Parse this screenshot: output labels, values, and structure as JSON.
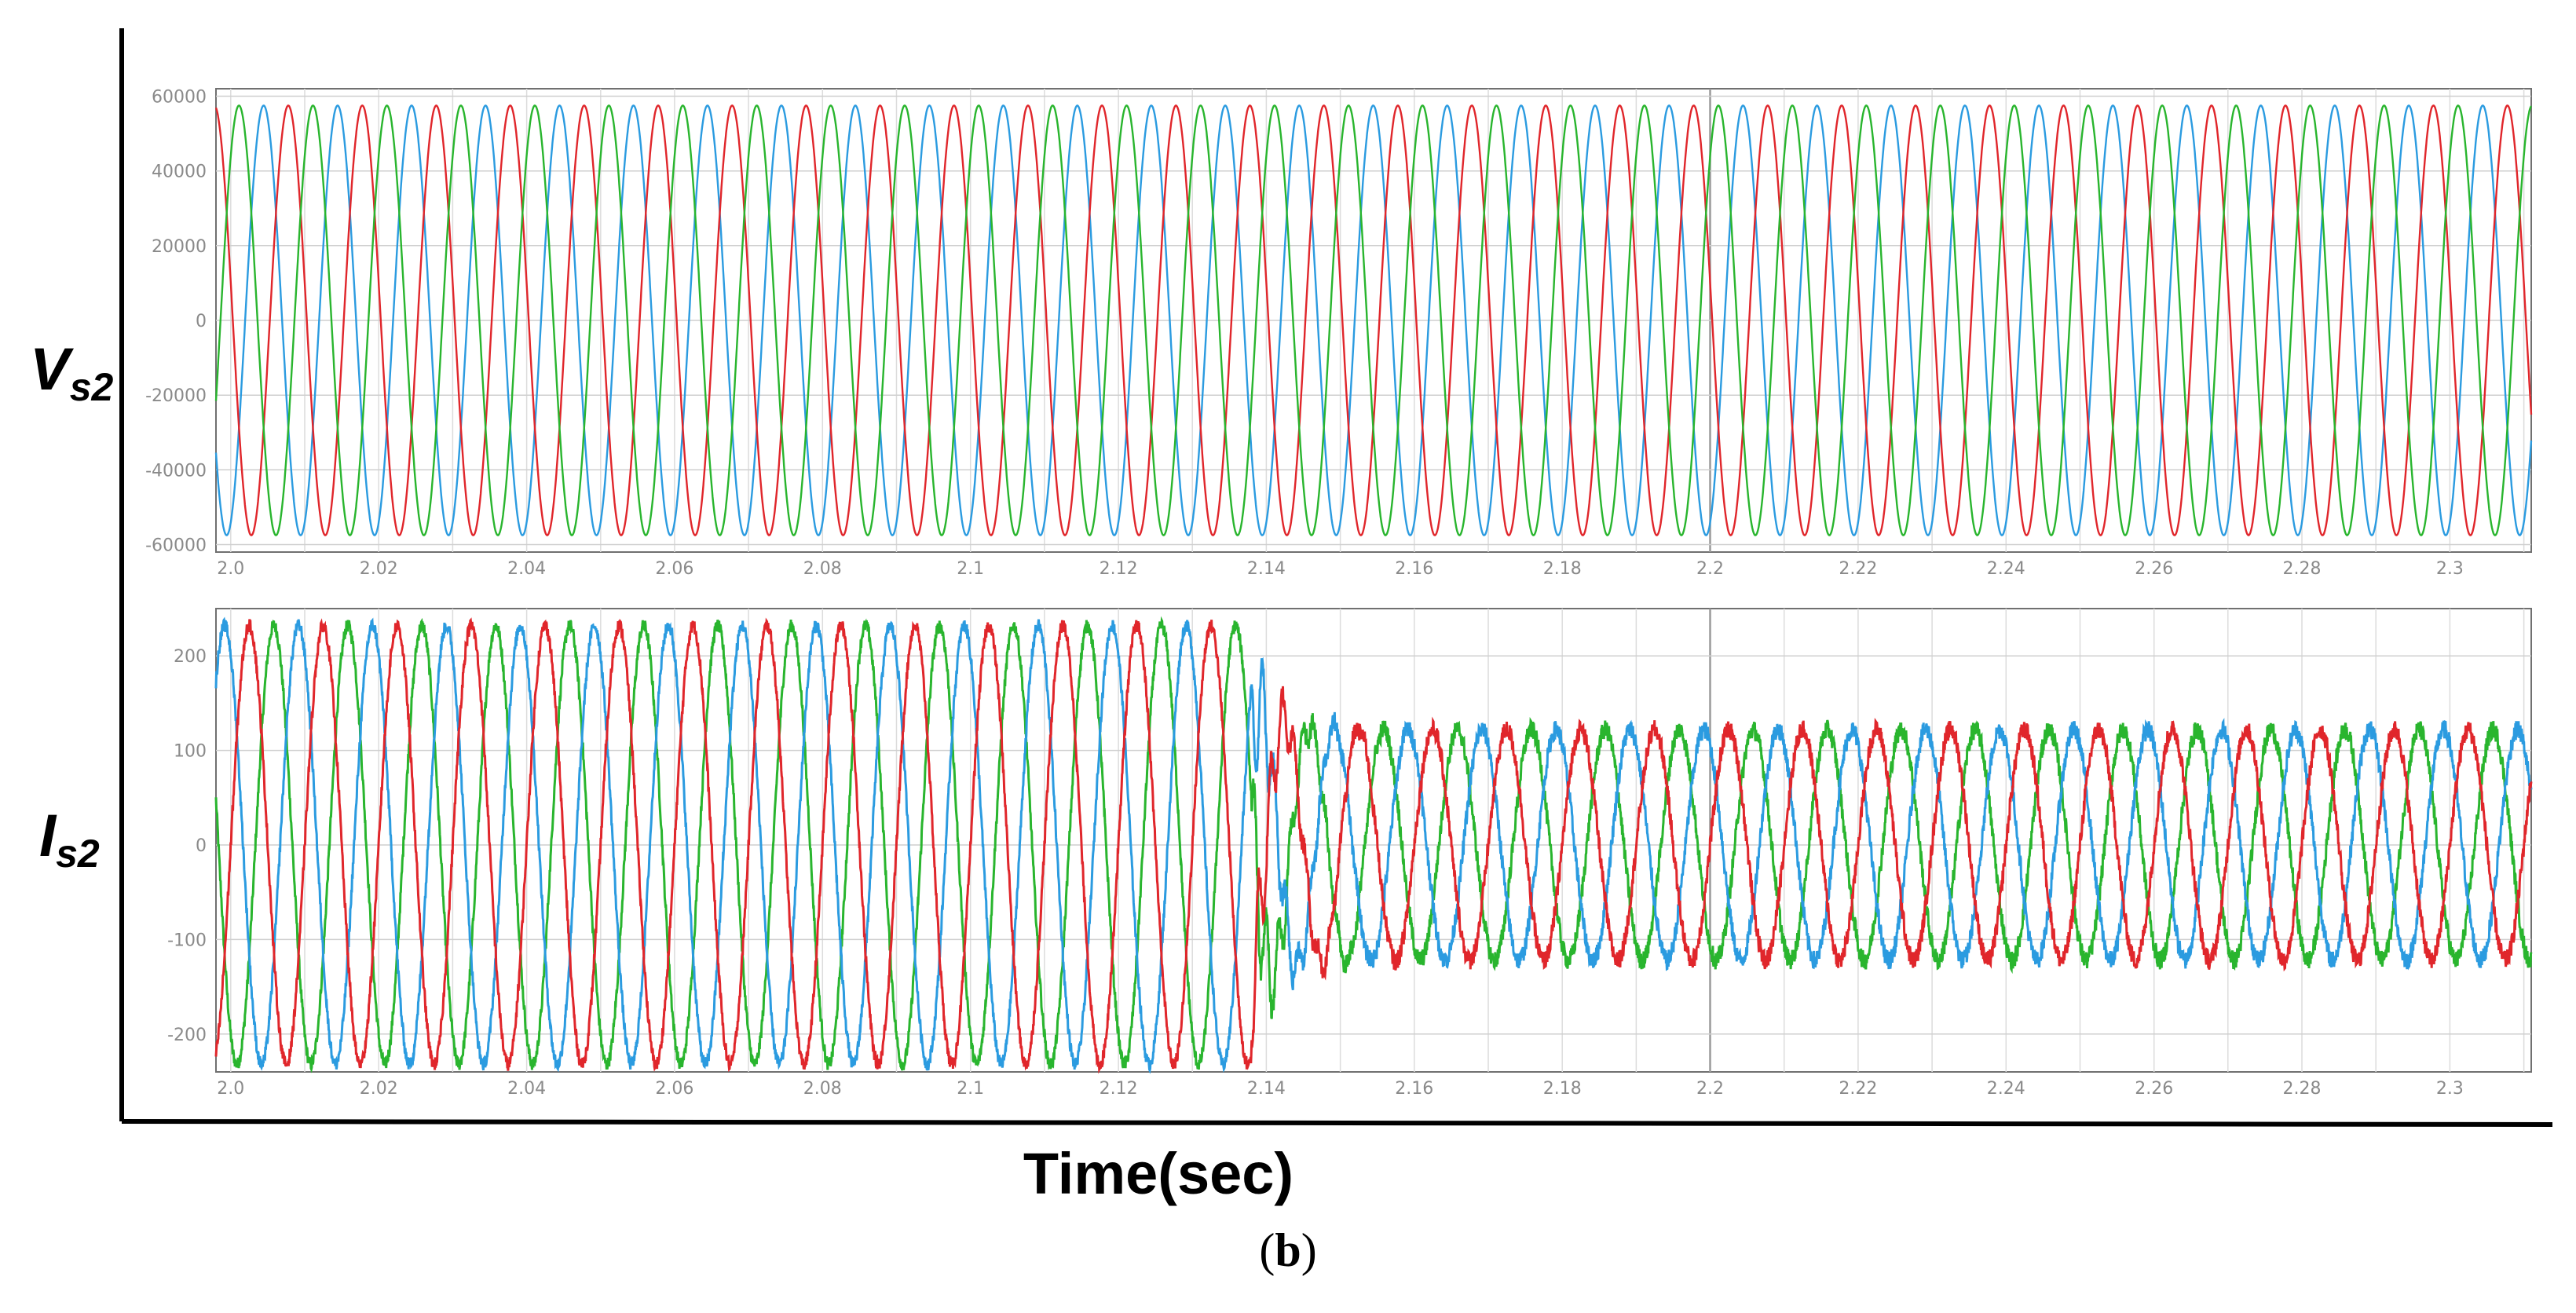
{
  "figure": {
    "x_axis_title": "Time(sec)",
    "caption_open": "(",
    "caption_letter": "b",
    "caption_close": ")"
  },
  "chart_data": [
    {
      "type": "line",
      "panel": "top",
      "label_main": "V",
      "label_sub": "s2",
      "xlim": [
        1.998,
        2.311
      ],
      "ylim": [
        -62000,
        62000
      ],
      "x_ticks": [
        2.0,
        2.02,
        2.04,
        2.06,
        2.08,
        2.1,
        2.12,
        2.14,
        2.16,
        2.18,
        2.2,
        2.22,
        2.24,
        2.26,
        2.28,
        2.3
      ],
      "x_tick_labels": [
        "2.0",
        "2.02",
        "2.04",
        "2.06",
        "2.08",
        "2.1",
        "2.12",
        "2.14",
        "2.16",
        "2.18",
        "2.2",
        "2.22",
        "2.24",
        "2.26",
        "2.28",
        "2.3"
      ],
      "y_ticks": [
        60000,
        40000,
        20000,
        0,
        -20000,
        -40000,
        -60000
      ],
      "y_tick_labels": [
        "60000",
        "40000",
        "20000",
        "0",
        "-20000",
        "-40000",
        "-60000"
      ],
      "grid": true,
      "frequency_hz": 100,
      "series": [
        {
          "color": "#2b9be0",
          "amplitude": 57500,
          "phase_deg": -70
        },
        {
          "color": "#e0262b",
          "amplitude": 57500,
          "phase_deg": 170
        },
        {
          "color": "#29b52e",
          "amplitude": 57500,
          "phase_deg": 50
        }
      ]
    },
    {
      "type": "line",
      "panel": "bottom",
      "label_main": "I",
      "label_sub": "s2",
      "xlim": [
        1.998,
        2.311
      ],
      "ylim": [
        -240,
        250
      ],
      "x_ticks": [
        2.0,
        2.02,
        2.04,
        2.06,
        2.08,
        2.1,
        2.12,
        2.14,
        2.16,
        2.18,
        2.2,
        2.22,
        2.24,
        2.26,
        2.28,
        2.3
      ],
      "x_tick_labels": [
        "2.0",
        "2.02",
        "2.04",
        "2.06",
        "2.08",
        "2.1",
        "2.12",
        "2.14",
        "2.16",
        "2.18",
        "2.2",
        "2.22",
        "2.24",
        "2.26",
        "2.28",
        "2.3"
      ],
      "y_ticks": [
        200,
        100,
        0,
        -100,
        -200
      ],
      "y_tick_labels": [
        "200",
        "100",
        "0",
        "-100",
        "-200"
      ],
      "grid": true,
      "frequency_hz": 100,
      "fault_time": 2.138,
      "amplitude_before": 232,
      "amplitude_after": 122,
      "series": [
        {
          "color": "#29b52e",
          "phase_deg": 240
        },
        {
          "color": "#2b9be0",
          "phase_deg": 120
        },
        {
          "color": "#e0262b",
          "phase_deg": 0
        }
      ]
    }
  ]
}
